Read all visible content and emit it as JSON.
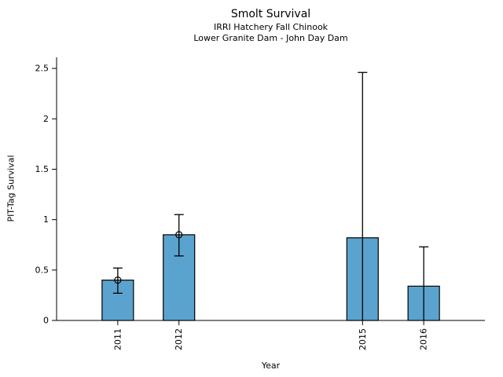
{
  "chart_data": {
    "type": "bar",
    "title": "Smolt Survival",
    "subtitle_lines": [
      "IRRI Hatchery Fall Chinook",
      "Lower Granite Dam - John Day Dam"
    ],
    "xlabel": "Year",
    "ylabel": "PIT-Tag Survival",
    "categories": [
      "2011",
      "2012",
      "2015",
      "2016"
    ],
    "x_values": [
      2011,
      2012,
      2015,
      2016
    ],
    "values": [
      0.4,
      0.85,
      0.82,
      0.34
    ],
    "error_low": [
      0.27,
      0.64,
      0,
      0
    ],
    "error_high": [
      0.52,
      1.05,
      2.46,
      0.73
    ],
    "point_markers": [
      true,
      true,
      false,
      false
    ],
    "yticks": [
      0,
      0.5,
      1,
      1.5,
      2,
      2.5
    ],
    "ytick_labels": [
      "0",
      "0.5",
      "1",
      "1.5",
      "2",
      "2.5"
    ],
    "ylim": [
      0,
      2.61
    ],
    "xlim": [
      2010,
      2017
    ],
    "x_tick_rotation": 90,
    "grid": false,
    "legend": null,
    "bar_color": "#5ba3cf",
    "bar_edge_color": "#000000",
    "error_color": "#000000",
    "text_color": "#000000",
    "background_color": "#ffffff"
  }
}
